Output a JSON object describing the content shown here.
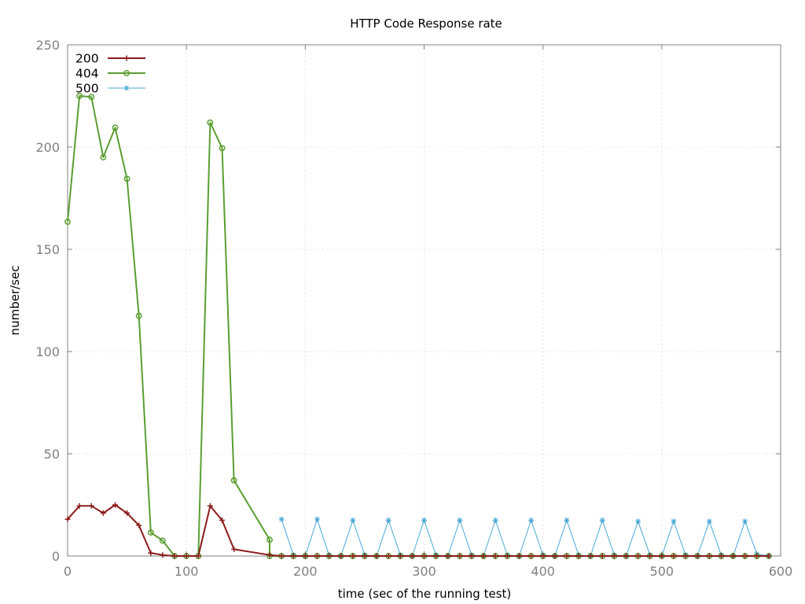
{
  "chart_data": {
    "type": "line",
    "title": "HTTP Code Response rate",
    "xlabel": "time (sec of the running test)",
    "ylabel": "number/sec",
    "xlim": [
      0,
      600
    ],
    "ylim": [
      0,
      250
    ],
    "xticks": [
      "0",
      "100",
      "200",
      "300",
      "400",
      "500",
      "600"
    ],
    "yticks": [
      "0",
      "50",
      "100",
      "150",
      "200",
      "250"
    ],
    "grid": true,
    "legend_position": "top-left",
    "series": [
      {
        "name": "200",
        "color": "#8b1a1a",
        "marker": "plus",
        "x": [
          0,
          10,
          20,
          30,
          40,
          50,
          60,
          70,
          80,
          90,
          100,
          110,
          120,
          130,
          140,
          170,
          180,
          190,
          200,
          210,
          220,
          230,
          240,
          250,
          260,
          270,
          280,
          290,
          300,
          310,
          320,
          330,
          340,
          350,
          360,
          370,
          380,
          390,
          400,
          410,
          420,
          430,
          440,
          450,
          460,
          470,
          480,
          490,
          500,
          510,
          520,
          530,
          540,
          550,
          560,
          570,
          580,
          590
        ],
        "y": [
          18,
          24.5,
          24.5,
          21,
          25,
          21,
          15,
          1.5,
          0.5,
          0,
          0,
          0,
          24.5,
          17.5,
          3.3,
          0.5,
          0,
          0,
          0,
          0,
          0,
          0,
          0,
          0,
          0,
          0,
          0,
          0,
          0,
          0,
          0,
          0,
          0,
          0,
          0,
          0,
          0,
          0,
          0,
          0,
          0,
          0,
          0,
          0,
          0,
          0,
          0,
          0,
          0,
          0,
          0,
          0,
          0,
          0,
          0,
          0,
          0,
          0
        ]
      },
      {
        "name": "404",
        "color": "#5a9e32",
        "marker": "circle",
        "x": [
          0,
          10,
          20,
          30,
          40,
          50,
          60,
          70,
          80,
          90,
          100,
          110,
          120,
          130,
          140,
          170,
          170,
          180,
          190,
          200,
          210,
          220,
          230,
          240,
          250,
          260,
          270,
          280,
          290,
          300,
          310,
          320,
          330,
          340,
          350,
          360,
          370,
          380,
          390,
          400,
          410,
          420,
          430,
          440,
          450,
          460,
          470,
          480,
          490,
          500,
          510,
          520,
          530,
          540,
          550,
          560,
          570,
          580,
          590
        ],
        "y": [
          163.5,
          225,
          224.5,
          195,
          209.5,
          184.5,
          117.5,
          11.5,
          7.5,
          0,
          0,
          0,
          212,
          199.5,
          37,
          8,
          0,
          0,
          0,
          0,
          0,
          0,
          0,
          0,
          0,
          0,
          0,
          0,
          0,
          0,
          0,
          0,
          0,
          0,
          0,
          0,
          0,
          0,
          0,
          0,
          0,
          0,
          0,
          0,
          0,
          0,
          0,
          0,
          0,
          0,
          0,
          0,
          0,
          0,
          0,
          0,
          0,
          0,
          0
        ]
      },
      {
        "name": "500",
        "color": "#4aa8d8",
        "marker": "star",
        "x": [
          180,
          190,
          200,
          210,
          220,
          230,
          240,
          250,
          260,
          270,
          280,
          290,
          300,
          310,
          320,
          330,
          340,
          350,
          360,
          370,
          380,
          390,
          400,
          410,
          420,
          430,
          440,
          450,
          460,
          470,
          480,
          490,
          500,
          510,
          520,
          530,
          540,
          550,
          560,
          570,
          580,
          590
        ],
        "y": [
          18,
          0.5,
          0,
          18,
          0.5,
          0,
          17.5,
          0.5,
          0,
          17.5,
          0.5,
          0,
          17.5,
          0.5,
          0,
          17.5,
          0.5,
          0,
          17.5,
          0.5,
          0,
          17.5,
          0.5,
          0,
          17.5,
          0.5,
          0,
          17.5,
          0.5,
          0,
          17,
          0.5,
          0,
          17,
          0.5,
          0,
          17,
          0.5,
          0,
          17,
          1,
          0
        ]
      }
    ]
  }
}
